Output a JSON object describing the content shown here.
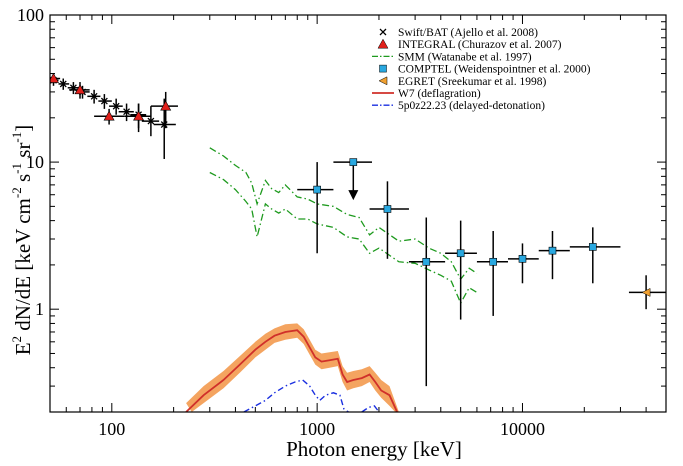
{
  "chart_data": {
    "type": "scatter",
    "xscale": "log",
    "yscale": "log",
    "xlim": [
      50,
      50000
    ],
    "ylim": [
      0.2,
      100
    ],
    "xlabel": "Photon energy [keV]",
    "ylabel_parts": {
      "main": "E",
      "sup2": "2",
      "after": " dN/dE [keV cm",
      "supA": "-2",
      "s": " s",
      "supB": "-1",
      "sr": " sr",
      "supC": "-1",
      "end": "]"
    },
    "xticks": [
      {
        "v": 100,
        "label": "100"
      },
      {
        "v": 1000,
        "label": "1000"
      },
      {
        "v": 10000,
        "label": "10000"
      }
    ],
    "yticks": [
      {
        "v": 1,
        "label": "1"
      },
      {
        "v": 10,
        "label": "10"
      },
      {
        "v": 100,
        "label": "100"
      }
    ],
    "legend_position": "top-right",
    "legend": [
      {
        "label": "Swift/BAT (Ajello et al. 2008)",
        "marker": "x",
        "color": "#000000"
      },
      {
        "label": "INTEGRAL (Churazov et al. 2007)",
        "marker": "triangle-up",
        "color": "#e0201b"
      },
      {
        "label": "SMM (Watanabe et al. 1997)",
        "marker": "dashdot",
        "color": "#1e9a1e"
      },
      {
        "label": "COMPTEL (Weidenspointner et al. 2000)",
        "marker": "square",
        "color": "#29a8e0"
      },
      {
        "label": "EGRET (Sreekumar et al. 1998)",
        "marker": "triangle-left",
        "color": "#f0a030"
      },
      {
        "label": "W7 (deflagration)",
        "marker": "line",
        "color": "#d0302a"
      },
      {
        "label": "5p0z22.23 (delayed-detonation)",
        "marker": "dashdot",
        "color": "#1a2fe0"
      }
    ],
    "colors": {
      "swift": "#000000",
      "integral": "#e0201b",
      "smm": "#1e9a1e",
      "comptel": "#29a8e0",
      "egret": "#f0a030",
      "w7": "#d0302a",
      "w7_band": "#f4a460",
      "ddt": "#1a2fe0"
    },
    "swift": [
      {
        "x": 52,
        "y": 36,
        "xerr": [
          50,
          55
        ],
        "yerr": [
          33,
          39
        ]
      },
      {
        "x": 58,
        "y": 34,
        "xerr": [
          55,
          62
        ],
        "yerr": [
          31,
          37
        ]
      },
      {
        "x": 65,
        "y": 32,
        "xerr": [
          61,
          70
        ],
        "yerr": [
          29,
          35
        ]
      },
      {
        "x": 72,
        "y": 30,
        "xerr": [
          68,
          78
        ],
        "yerr": [
          27,
          33
        ]
      },
      {
        "x": 82,
        "y": 28,
        "xerr": [
          76,
          88
        ],
        "yerr": [
          25,
          31
        ]
      },
      {
        "x": 92,
        "y": 26,
        "xerr": [
          86,
          100
        ],
        "yerr": [
          23,
          29
        ]
      },
      {
        "x": 105,
        "y": 24,
        "xerr": [
          97,
          113
        ],
        "yerr": [
          21,
          27
        ]
      },
      {
        "x": 118,
        "y": 22,
        "xerr": [
          108,
          128
        ],
        "yerr": [
          19,
          25
        ]
      },
      {
        "x": 135,
        "y": 21,
        "xerr": [
          123,
          147
        ],
        "yerr": [
          17,
          25
        ]
      },
      {
        "x": 155,
        "y": 19,
        "xerr": [
          140,
          170
        ],
        "yerr": [
          15,
          24
        ]
      },
      {
        "x": 180,
        "y": 18,
        "xerr": [
          160,
          205
        ],
        "yerr": [
          10.5,
          27
        ]
      }
    ],
    "integral": [
      {
        "x": 52,
        "y": 37,
        "xerr": [
          50,
          56
        ],
        "yerr": [
          34,
          40
        ]
      },
      {
        "x": 70,
        "y": 31,
        "xerr": [
          62,
          78
        ],
        "yerr": [
          27,
          35
        ]
      },
      {
        "x": 97,
        "y": 20.5,
        "xerr": [
          82,
          115
        ],
        "yerr": [
          18,
          23
        ]
      },
      {
        "x": 135,
        "y": 20.5,
        "xerr": [
          115,
          155
        ],
        "yerr": [
          16,
          25
        ]
      },
      {
        "x": 183,
        "y": 24,
        "xerr": [
          155,
          210
        ],
        "yerr": [
          17,
          30
        ]
      }
    ],
    "comptel": [
      {
        "x": 1000,
        "y": 6.5,
        "xerr": [
          800,
          1200
        ],
        "yerr": [
          2.4,
          10
        ]
      },
      {
        "x": 1500,
        "y": 10,
        "xerr": [
          1200,
          1850
        ],
        "upper": true
      },
      {
        "x": 2200,
        "y": 4.8,
        "xerr": [
          1800,
          2800
        ],
        "yerr": [
          2.2,
          7.4
        ]
      },
      {
        "x": 3400,
        "y": 2.1,
        "xerr": [
          2800,
          4200
        ],
        "yerr": [
          0.3,
          4.2
        ]
      },
      {
        "x": 5000,
        "y": 2.4,
        "xerr": [
          4200,
          6000
        ],
        "yerr": [
          0.85,
          4
        ]
      },
      {
        "x": 7200,
        "y": 2.1,
        "xerr": [
          6000,
          8500
        ],
        "yerr": [
          0.9,
          3.4
        ]
      },
      {
        "x": 10000,
        "y": 2.2,
        "xerr": [
          8500,
          12000
        ],
        "yerr": [
          1.5,
          2.8
        ]
      },
      {
        "x": 14000,
        "y": 2.5,
        "xerr": [
          12000,
          17000
        ],
        "yerr": [
          1.6,
          3.4
        ]
      },
      {
        "x": 22000,
        "y": 2.65,
        "xerr": [
          17000,
          30000
        ],
        "yerr": [
          1.5,
          3.6
        ]
      }
    ],
    "egret": [
      {
        "x": 40000,
        "y": 1.3,
        "xerr": [
          33000,
          50000
        ],
        "yerr": [
          1.0,
          1.7
        ]
      }
    ],
    "smm_upper": [
      [
        300,
        12.5
      ],
      [
        350,
        11
      ],
      [
        400,
        9.5
      ],
      [
        450,
        8.5
      ],
      [
        480,
        7.2
      ],
      [
        510,
        5.2
      ],
      [
        560,
        7.5
      ],
      [
        600,
        6.6
      ],
      [
        650,
        6.2
      ],
      [
        700,
        7
      ],
      [
        800,
        5.8
      ],
      [
        900,
        5.6
      ],
      [
        1000,
        5.2
      ],
      [
        1200,
        5
      ],
      [
        1400,
        4.4
      ],
      [
        1600,
        4.2
      ],
      [
        1800,
        3.2
      ],
      [
        2000,
        3.6
      ],
      [
        2500,
        2.9
      ],
      [
        3000,
        3
      ],
      [
        3500,
        2.6
      ],
      [
        4000,
        2.4
      ],
      [
        4500,
        2.1
      ],
      [
        5000,
        1.6
      ],
      [
        5500,
        1.9
      ],
      [
        6000,
        1.75
      ]
    ],
    "smm_lower": [
      [
        300,
        8.5
      ],
      [
        350,
        7.6
      ],
      [
        400,
        6.5
      ],
      [
        450,
        5.4
      ],
      [
        480,
        4.8
      ],
      [
        510,
        3.1
      ],
      [
        560,
        5.2
      ],
      [
        600,
        4.8
      ],
      [
        650,
        4.5
      ],
      [
        700,
        4.8
      ],
      [
        800,
        4.1
      ],
      [
        900,
        4.1
      ],
      [
        1000,
        3.8
      ],
      [
        1200,
        3.6
      ],
      [
        1400,
        3.1
      ],
      [
        1600,
        3
      ],
      [
        1800,
        2.4
      ],
      [
        2000,
        2.6
      ],
      [
        2500,
        2.1
      ],
      [
        3000,
        2.05
      ],
      [
        3500,
        1.85
      ],
      [
        4000,
        1.7
      ],
      [
        4500,
        1.55
      ],
      [
        5000,
        1.1
      ],
      [
        5500,
        1.4
      ],
      [
        6000,
        1.3
      ]
    ],
    "w7": [
      [
        230,
        0.2
      ],
      [
        280,
        0.26
      ],
      [
        350,
        0.33
      ],
      [
        420,
        0.42
      ],
      [
        500,
        0.53
      ],
      [
        560,
        0.6
      ],
      [
        620,
        0.66
      ],
      [
        700,
        0.7
      ],
      [
        800,
        0.72
      ],
      [
        860,
        0.65
      ],
      [
        920,
        0.55
      ],
      [
        980,
        0.47
      ],
      [
        1050,
        0.44
      ],
      [
        1150,
        0.45
      ],
      [
        1260,
        0.46
      ],
      [
        1330,
        0.36
      ],
      [
        1400,
        0.32
      ],
      [
        1500,
        0.33
      ],
      [
        1650,
        0.34
      ],
      [
        1800,
        0.36
      ],
      [
        1920,
        0.32
      ],
      [
        2050,
        0.28
      ],
      [
        2250,
        0.26
      ],
      [
        2450,
        0.2
      ]
    ],
    "w7_band": {
      "upper": [
        [
          230,
          0.23
        ],
        [
          280,
          0.3
        ],
        [
          350,
          0.38
        ],
        [
          420,
          0.48
        ],
        [
          500,
          0.6
        ],
        [
          560,
          0.68
        ],
        [
          620,
          0.74
        ],
        [
          700,
          0.79
        ],
        [
          800,
          0.8
        ],
        [
          860,
          0.73
        ],
        [
          920,
          0.62
        ],
        [
          980,
          0.53
        ],
        [
          1050,
          0.5
        ],
        [
          1150,
          0.51
        ],
        [
          1260,
          0.52
        ],
        [
          1330,
          0.41
        ],
        [
          1400,
          0.37
        ],
        [
          1500,
          0.38
        ],
        [
          1650,
          0.39
        ],
        [
          1800,
          0.41
        ],
        [
          1920,
          0.37
        ],
        [
          2050,
          0.33
        ],
        [
          2250,
          0.3
        ],
        [
          2500,
          0.2
        ]
      ],
      "lower": [
        [
          245,
          0.2
        ],
        [
          280,
          0.23
        ],
        [
          350,
          0.29
        ],
        [
          420,
          0.37
        ],
        [
          500,
          0.47
        ],
        [
          560,
          0.53
        ],
        [
          620,
          0.59
        ],
        [
          700,
          0.62
        ],
        [
          800,
          0.64
        ],
        [
          860,
          0.58
        ],
        [
          920,
          0.49
        ],
        [
          980,
          0.42
        ],
        [
          1050,
          0.39
        ],
        [
          1150,
          0.4
        ],
        [
          1260,
          0.41
        ],
        [
          1330,
          0.32
        ],
        [
          1400,
          0.28
        ],
        [
          1500,
          0.29
        ],
        [
          1650,
          0.3
        ],
        [
          1800,
          0.32
        ],
        [
          1920,
          0.28
        ],
        [
          2050,
          0.25
        ],
        [
          2250,
          0.22
        ],
        [
          2400,
          0.2
        ]
      ]
    },
    "ddt": [
      [
        440,
        0.2
      ],
      [
        500,
        0.22
      ],
      [
        560,
        0.24
      ],
      [
        620,
        0.27
      ],
      [
        700,
        0.3
      ],
      [
        780,
        0.32
      ],
      [
        850,
        0.33
      ],
      [
        920,
        0.3
      ],
      [
        980,
        0.26
      ],
      [
        1030,
        0.24
      ],
      [
        1100,
        0.26
      ],
      [
        1200,
        0.27
      ],
      [
        1290,
        0.26
      ],
      [
        1350,
        0.21
      ],
      [
        1420,
        0.2
      ]
    ],
    "ddt2": [
      [
        1650,
        0.2
      ],
      [
        1780,
        0.215
      ],
      [
        1900,
        0.22
      ],
      [
        2000,
        0.2
      ]
    ]
  }
}
